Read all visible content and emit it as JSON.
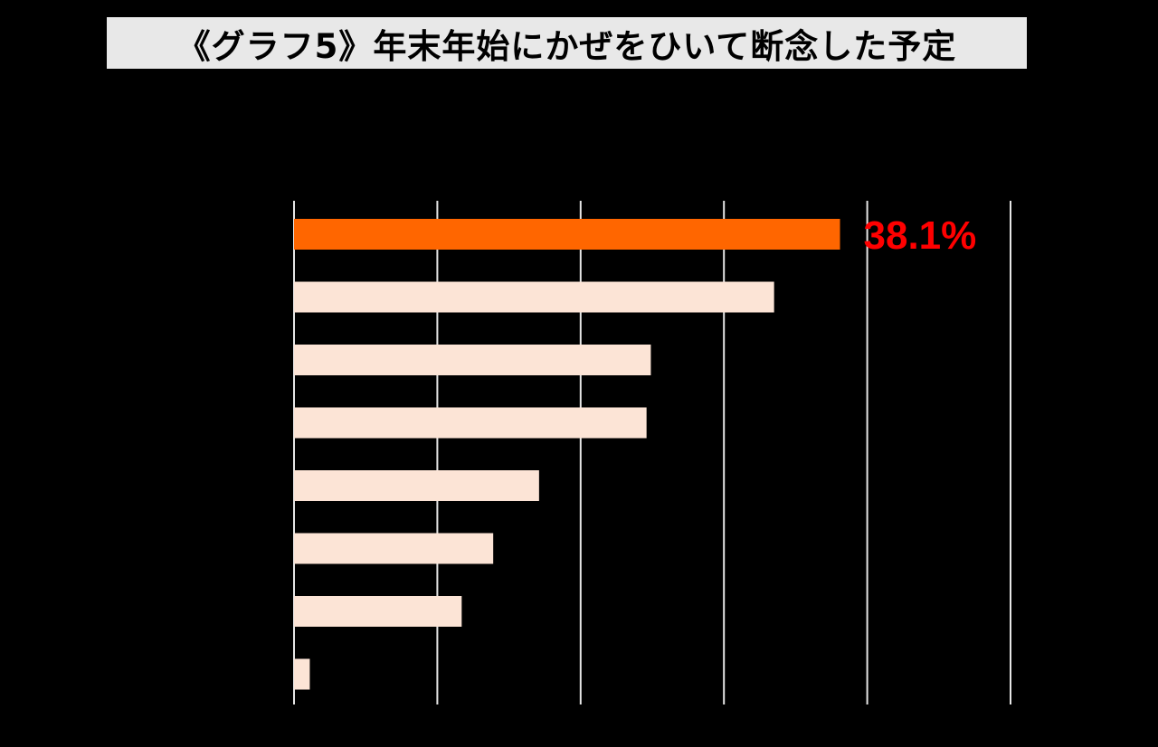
{
  "title": "《グラフ5》年末年始にかぜをひいて断念した予定",
  "colors": {
    "background": "#000000",
    "title_bg": "#e8e8e8",
    "title_text": "#000000",
    "highlight_bar": "#ff6600",
    "normal_bar": "#fce4d6",
    "grid": "#e6e6e6",
    "highlight_label": "#ff0000"
  },
  "chart_data": {
    "type": "bar",
    "orientation": "horizontal",
    "title": "《グラフ5》年末年始にかぜをひいて断念した予定",
    "xlim": [
      0,
      50
    ],
    "grid": true,
    "categories": [
      "",
      "",
      "",
      "",
      "",
      "",
      "",
      ""
    ],
    "values": [
      38.1,
      33.5,
      24.9,
      24.6,
      17.1,
      13.9,
      11.7,
      1.1
    ],
    "highlight_index": 0,
    "data_labels": [
      "38.1%",
      "",
      "",
      "",
      "",
      "",
      "",
      ""
    ]
  }
}
